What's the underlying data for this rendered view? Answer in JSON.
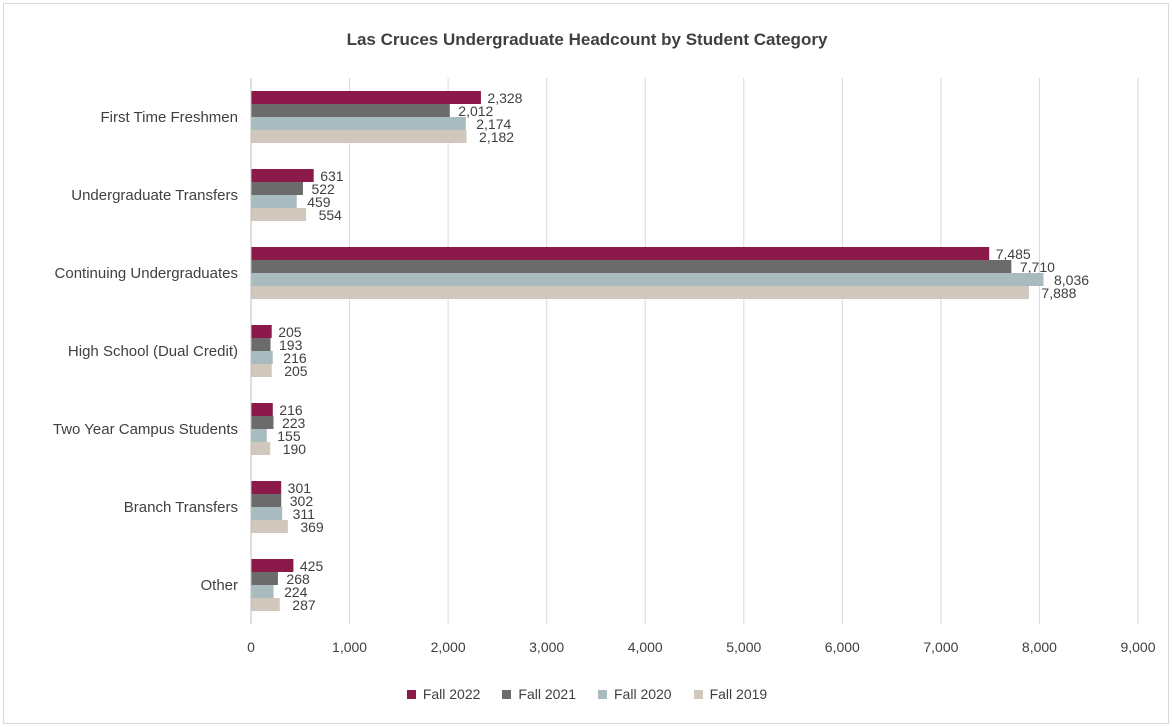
{
  "chart_data": {
    "type": "bar",
    "orientation": "horizontal",
    "title": "Las Cruces Undergraduate Headcount by Student Category",
    "categories": [
      "First Time Freshmen",
      "Undergraduate Transfers",
      "Continuing Undergraduates",
      "High School (Dual Credit)",
      "Two Year Campus Students",
      "Branch Transfers",
      "Other"
    ],
    "series": [
      {
        "name": "Fall 2022",
        "color": "#8b1a4a",
        "values": [
          2328,
          631,
          7485,
          205,
          216,
          301,
          425
        ],
        "labels": [
          "2,328",
          "631",
          "7,485",
          "205",
          "216",
          "301",
          "425"
        ]
      },
      {
        "name": "Fall 2021",
        "color": "#6b6b6b",
        "values": [
          2012,
          522,
          7710,
          193,
          223,
          302,
          268
        ],
        "labels": [
          "2,012",
          "522",
          "7,710",
          "193",
          "223",
          "302",
          "268"
        ]
      },
      {
        "name": "Fall 2020",
        "color": "#a8bcc0",
        "values": [
          2174,
          459,
          8036,
          216,
          155,
          311,
          224
        ],
        "labels": [
          "2,174",
          "459",
          "8,036",
          "216",
          "155",
          "311",
          "224"
        ]
      },
      {
        "name": "Fall 2019",
        "color": "#d1c7bd",
        "values": [
          2182,
          554,
          7888,
          205,
          190,
          369,
          287
        ],
        "labels": [
          "2,182",
          "554",
          "7,888",
          "205",
          "190",
          "369",
          "287"
        ]
      }
    ],
    "xlim": [
      0,
      9000
    ],
    "xticks": [
      0,
      1000,
      2000,
      3000,
      4000,
      5000,
      6000,
      7000,
      8000,
      9000
    ],
    "xtick_labels": [
      "0",
      "1,000",
      "2,000",
      "3,000",
      "4,000",
      "5,000",
      "6,000",
      "7,000",
      "8,000",
      "9,000"
    ],
    "grid": "vertical",
    "legend": "bottom"
  }
}
